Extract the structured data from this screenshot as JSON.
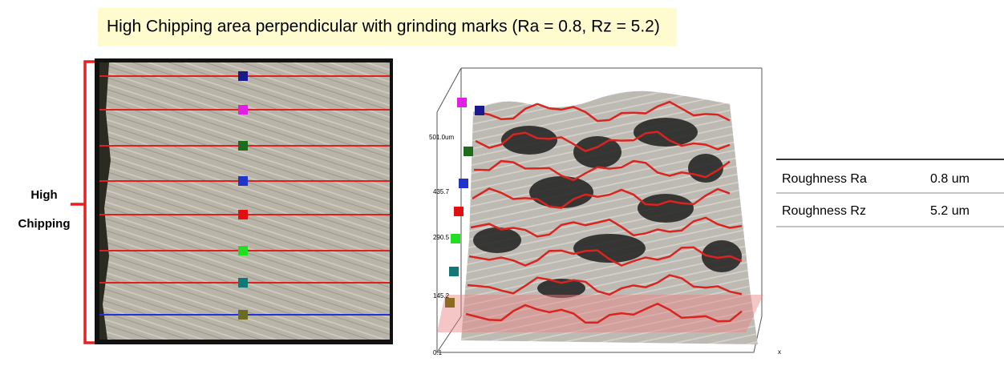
{
  "title": "High Chipping area perpendicular with grinding marks (Ra = 0.8, Rz = 5.2)",
  "side_label": {
    "line1": "High",
    "line2": "Chipping"
  },
  "plot_axis_labels": [
    "501.0um",
    "435.7",
    "290.5",
    "145.2",
    "0.1",
    "x"
  ],
  "table": {
    "rows": [
      [
        "Roughness Ra",
        "0.8 um"
      ],
      [
        "Roughness Rz",
        "5.2 um"
      ]
    ]
  }
}
